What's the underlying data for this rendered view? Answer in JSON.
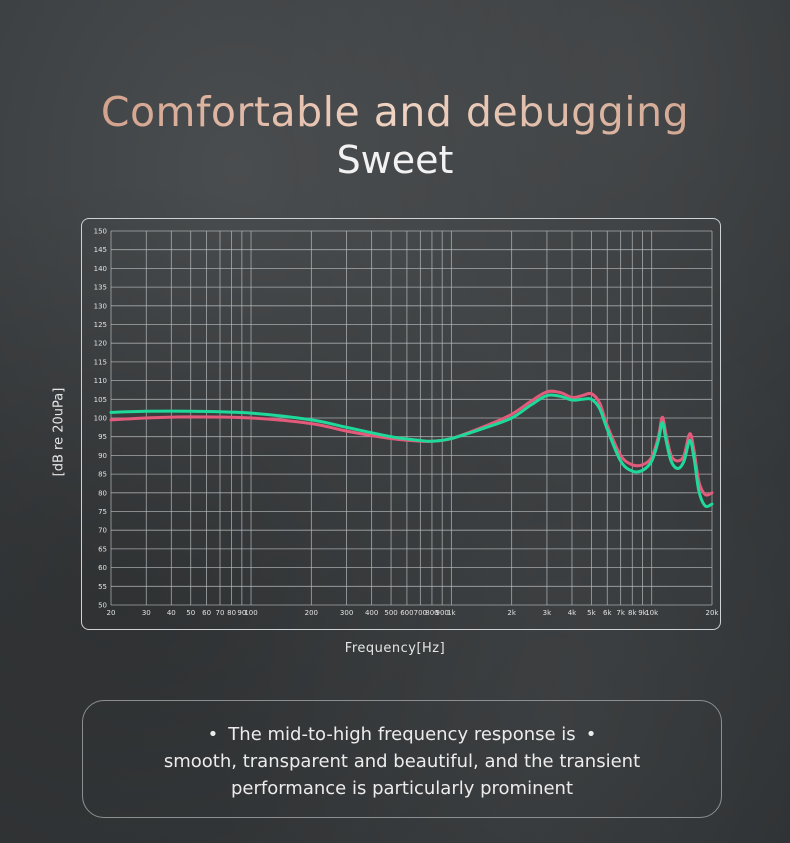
{
  "header": {
    "title": "Comfortable and debugging",
    "subtitle": "Sweet"
  },
  "info": {
    "bullet": "•",
    "line1": "The mid-to-high frequency response is",
    "line2": "smooth, transparent and beautiful, and the transient",
    "line3": "performance is particularly prominent"
  },
  "chart_data": {
    "type": "line",
    "xlabel": "Frequency[Hz]",
    "ylabel": "[dB re 20uPa]",
    "x_scale": "log",
    "xlim": [
      20,
      20000
    ],
    "ylim": [
      50,
      150
    ],
    "grid": true,
    "yticks": [
      50,
      55,
      60,
      65,
      70,
      75,
      80,
      85,
      90,
      95,
      100,
      105,
      110,
      115,
      120,
      125,
      130,
      135,
      140,
      145,
      150
    ],
    "xticks": [
      {
        "v": 20,
        "label": "20"
      },
      {
        "v": 30,
        "label": "30"
      },
      {
        "v": 40,
        "label": "40"
      },
      {
        "v": 50,
        "label": "50"
      },
      {
        "v": 60,
        "label": "60"
      },
      {
        "v": 70,
        "label": "70"
      },
      {
        "v": 80,
        "label": "80"
      },
      {
        "v": 90,
        "label": "90"
      },
      {
        "v": 100,
        "label": "100"
      },
      {
        "v": 200,
        "label": "200"
      },
      {
        "v": 300,
        "label": "300"
      },
      {
        "v": 400,
        "label": "400"
      },
      {
        "v": 500,
        "label": "500"
      },
      {
        "v": 600,
        "label": "600"
      },
      {
        "v": 700,
        "label": "700"
      },
      {
        "v": 800,
        "label": "800"
      },
      {
        "v": 900,
        "label": "900"
      },
      {
        "v": 1000,
        "label": "1k"
      },
      {
        "v": 2000,
        "label": "2k"
      },
      {
        "v": 3000,
        "label": "3k"
      },
      {
        "v": 4000,
        "label": "4k"
      },
      {
        "v": 5000,
        "label": "5k"
      },
      {
        "v": 6000,
        "label": "6k"
      },
      {
        "v": 7000,
        "label": "7k"
      },
      {
        "v": 8000,
        "label": "8k"
      },
      {
        "v": 9000,
        "label": "9k"
      },
      {
        "v": 10000,
        "label": "10k"
      },
      {
        "v": 20000,
        "label": "20k"
      }
    ],
    "series": [
      {
        "color": "#e35a7b",
        "points": [
          [
            20,
            99.5
          ],
          [
            30,
            100
          ],
          [
            50,
            100.3
          ],
          [
            100,
            100
          ],
          [
            200,
            98.5
          ],
          [
            300,
            96.5
          ],
          [
            500,
            94.5
          ],
          [
            700,
            93.8
          ],
          [
            800,
            93.8
          ],
          [
            1000,
            94.5
          ],
          [
            1500,
            98
          ],
          [
            2000,
            101
          ],
          [
            2500,
            104.5
          ],
          [
            3000,
            107
          ],
          [
            3500,
            106.8
          ],
          [
            4000,
            105.5
          ],
          [
            4500,
            106
          ],
          [
            5000,
            106.5
          ],
          [
            5500,
            104
          ],
          [
            6000,
            98
          ],
          [
            7000,
            90
          ],
          [
            8000,
            87.5
          ],
          [
            9000,
            87.5
          ],
          [
            10000,
            89.5
          ],
          [
            10800,
            95
          ],
          [
            11300,
            100.2
          ],
          [
            11800,
            95.5
          ],
          [
            12500,
            90
          ],
          [
            13500,
            88.5
          ],
          [
            14500,
            90
          ],
          [
            15500,
            95.8
          ],
          [
            16300,
            91
          ],
          [
            17200,
            83
          ],
          [
            18500,
            79.5
          ],
          [
            20000,
            80
          ]
        ]
      },
      {
        "color": "#1fd99a",
        "points": [
          [
            20,
            101.5
          ],
          [
            30,
            101.8
          ],
          [
            50,
            101.8
          ],
          [
            100,
            101.3
          ],
          [
            200,
            99.5
          ],
          [
            300,
            97.5
          ],
          [
            500,
            95
          ],
          [
            700,
            94
          ],
          [
            800,
            93.8
          ],
          [
            1000,
            94.5
          ],
          [
            1500,
            97.5
          ],
          [
            2000,
            100
          ],
          [
            2500,
            103.5
          ],
          [
            3000,
            106
          ],
          [
            3500,
            105.8
          ],
          [
            4000,
            104.8
          ],
          [
            4500,
            105
          ],
          [
            5000,
            105
          ],
          [
            5500,
            102.5
          ],
          [
            6000,
            97
          ],
          [
            7000,
            88.5
          ],
          [
            8000,
            85.8
          ],
          [
            9000,
            86
          ],
          [
            10000,
            88.5
          ],
          [
            10800,
            94
          ],
          [
            11300,
            98.8
          ],
          [
            11800,
            94
          ],
          [
            12500,
            88.5
          ],
          [
            13500,
            86.5
          ],
          [
            14500,
            88.5
          ],
          [
            15500,
            94
          ],
          [
            16300,
            89
          ],
          [
            17200,
            80.5
          ],
          [
            18500,
            76.5
          ],
          [
            20000,
            77
          ]
        ]
      }
    ]
  }
}
